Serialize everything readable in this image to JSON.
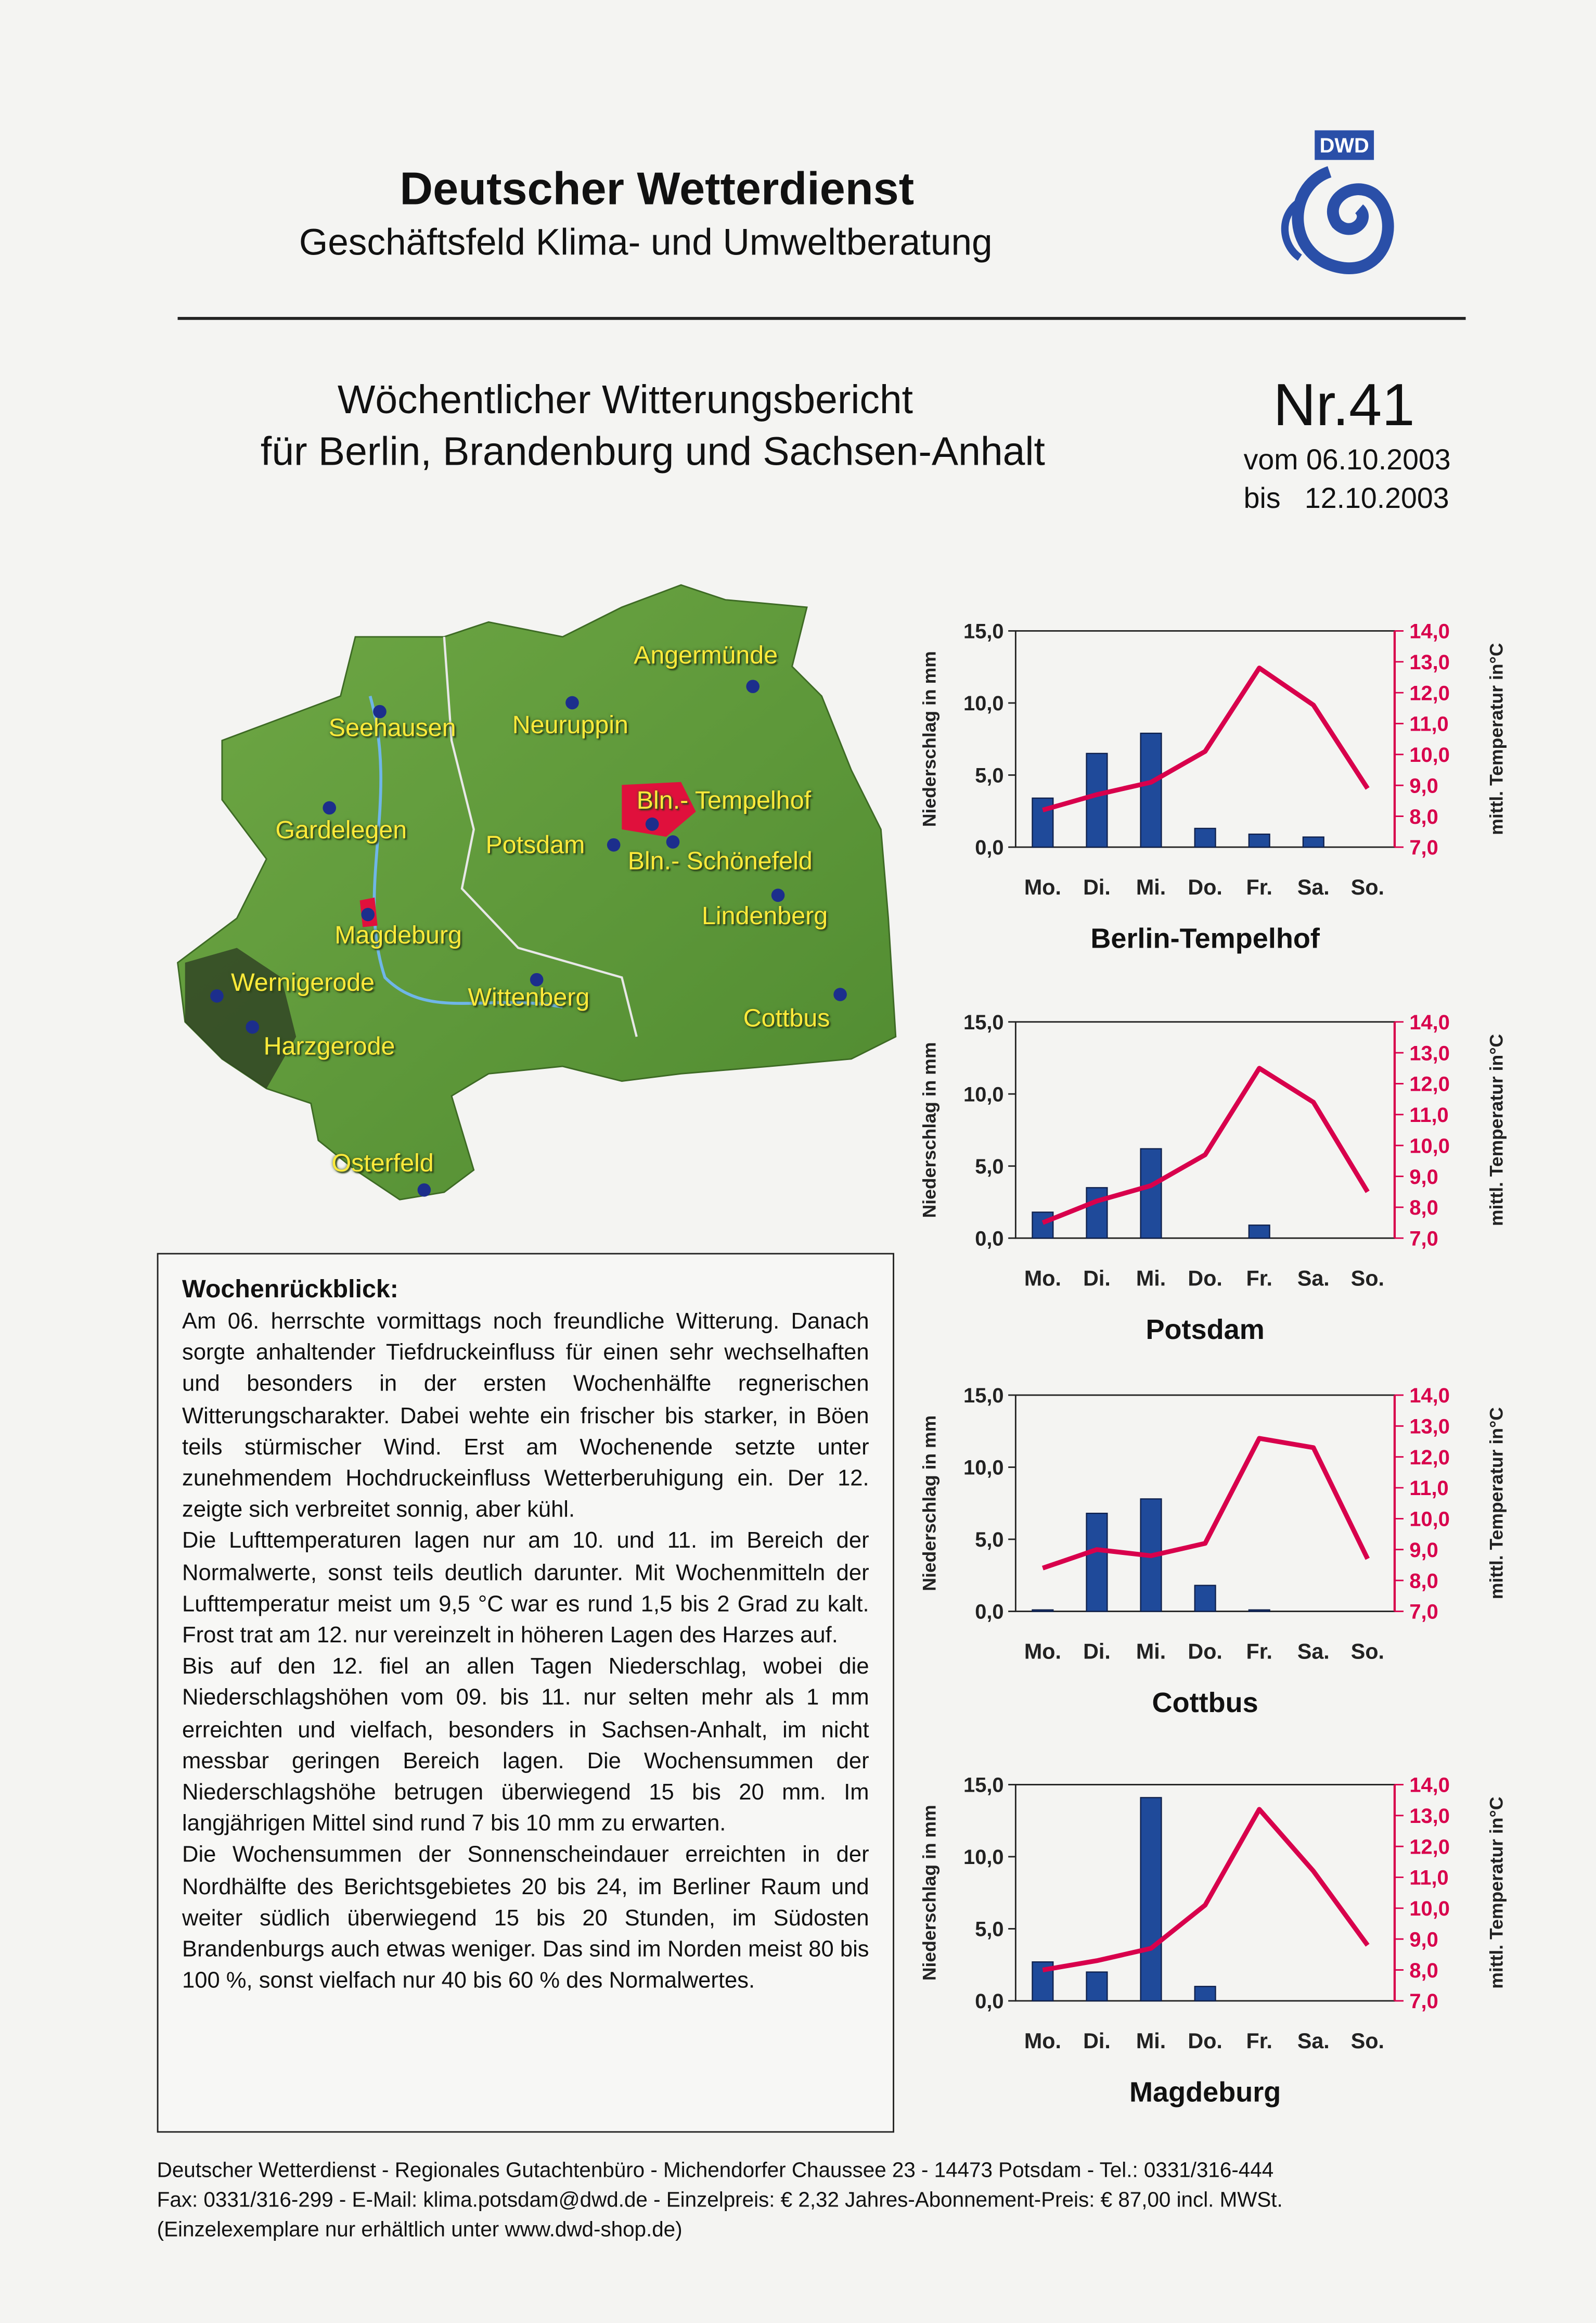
{
  "header": {
    "title": "Deutscher Wetterdienst",
    "subtitle": "Geschäftsfeld Klima- und Umweltberatung",
    "logo": "DWD"
  },
  "report": {
    "title": "Wöchentlicher Witterungsbericht",
    "region": "für Berlin, Brandenburg und Sachsen-Anhalt",
    "number": "Nr.41",
    "from": "vom 06.10.2003",
    "to": "bis   12.10.2003"
  },
  "map": {
    "places": [
      "Angermünde",
      "Seehausen",
      "Neuruppin",
      "Gardelegen",
      "Potsdam",
      "Bln.- Tempelhof",
      "Bln.- Schönefeld",
      "Lindenberg",
      "Magdeburg",
      "Wernigerode",
      "Wittenberg",
      "Cottbus",
      "Harzgerode",
      "Osterfeld"
    ]
  },
  "review": {
    "title": "Wochenrückblick:",
    "paragraphs": [
      "Am 06. herrschte vormittags noch freundliche Witterung. Danach sorgte anhaltender Tiefdruckeinfluss für einen sehr wechselhaften und besonders in der ersten Wochenhälfte regnerischen Witterungscharakter. Dabei wehte ein frischer bis starker, in Böen teils stürmischer Wind. Erst am Wochenende setzte unter zunehmendem Hochdruckeinfluss Wetterberuhigung ein. Der 12. zeigte sich verbreitet sonnig, aber kühl.",
      "Die Lufttemperaturen lagen nur am 10. und 11. im Bereich der Normalwerte, sonst teils deutlich darunter. Mit Wochenmitteln der Lufttemperatur meist um 9,5 °C war es rund 1,5 bis 2 Grad zu kalt. Frost trat am 12. nur vereinzelt in höheren Lagen des Harzes auf.",
      "Bis auf den 12. fiel an allen Tagen Niederschlag, wobei die Niederschlagshöhen vom 09. bis 11. nur selten mehr als 1 mm erreichten und vielfach, besonders in Sachsen-Anhalt, im nicht messbar geringen Bereich lagen. Die Wochensummen der Niederschlagshöhe betrugen überwiegend 15 bis 20 mm. Im langjährigen Mittel sind rund 7 bis 10 mm zu erwarten.",
      "Die Wochensummen der Sonnenscheindauer erreichten in der Nordhälfte des Berichtsgebietes 20 bis 24, im Berliner Raum und weiter südlich überwiegend 15 bis 20 Stunden, im Südosten Brandenburgs auch etwas weniger. Das sind im Norden meist 80 bis 100 %, sonst vielfach nur 40 bis 60 % des Normalwertes."
    ]
  },
  "footer": {
    "lines": [
      "Deutscher Wetterdienst - Regionales Gutachtenbüro - Michendorfer Chaussee 23 - 14473 Potsdam - Tel.: 0331/316-444",
      "Fax: 0331/316-299 - E-Mail: klima.potsdam@dwd.de - Einzelpreis: € 2,32 Jahres-Abonnement-Preis: € 87,00 incl. MWSt.",
      "(Einzelexemplare nur erhältlich unter www.dwd-shop.de)"
    ]
  },
  "chart_data": [
    {
      "type": "bar",
      "title": "Berlin-Tempelhof",
      "ylabel": "Niederschlag in mm",
      "y2label": "mittl. Temperatur in°C",
      "categories": [
        "Mo.",
        "Di.",
        "Mi.",
        "Do.",
        "Fr.",
        "Sa.",
        "So."
      ],
      "series": [
        {
          "name": "Niederschlag",
          "type": "bar",
          "color": "#1f4a9a",
          "values": [
            3.4,
            6.5,
            7.9,
            1.3,
            0.9,
            0.7,
            0
          ]
        },
        {
          "name": "Temperatur",
          "type": "line",
          "axis": "y2",
          "color": "#d8004c",
          "values": [
            8.2,
            8.7,
            9.1,
            10.1,
            12.8,
            11.6,
            8.9
          ]
        }
      ],
      "ylim": [
        0,
        15
      ],
      "yticks": [
        {
          "value": 0,
          "label": "0,0"
        },
        {
          "value": 5,
          "label": "5,0"
        },
        {
          "value": 10,
          "label": "10,0"
        },
        {
          "value": 15,
          "label": "15,0"
        }
      ],
      "y2lim": [
        7,
        14
      ],
      "y2ticks": [
        {
          "value": 7,
          "label": "7,0"
        },
        {
          "value": 8,
          "label": "8,0"
        },
        {
          "value": 9,
          "label": "9,0"
        },
        {
          "value": 10,
          "label": "10,0"
        },
        {
          "value": 11,
          "label": "11,0"
        },
        {
          "value": 12,
          "label": "12,0"
        },
        {
          "value": 13,
          "label": "13,0"
        },
        {
          "value": 14,
          "label": "14,0"
        }
      ]
    },
    {
      "type": "bar",
      "title": "Potsdam",
      "ylabel": "Niederschlag in mm",
      "y2label": "mittl. Temperatur in°C",
      "categories": [
        "Mo.",
        "Di.",
        "Mi.",
        "Do.",
        "Fr.",
        "Sa.",
        "So."
      ],
      "series": [
        {
          "name": "Niederschlag",
          "type": "bar",
          "color": "#1f4a9a",
          "values": [
            1.8,
            3.5,
            6.2,
            0,
            0.9,
            0,
            0
          ]
        },
        {
          "name": "Temperatur",
          "type": "line",
          "axis": "y2",
          "color": "#d8004c",
          "values": [
            7.5,
            8.2,
            8.7,
            9.7,
            12.5,
            11.4,
            8.5
          ]
        }
      ],
      "ylim": [
        0,
        15
      ],
      "yticks": [
        {
          "value": 0,
          "label": "0,0"
        },
        {
          "value": 5,
          "label": "5,0"
        },
        {
          "value": 10,
          "label": "10,0"
        },
        {
          "value": 15,
          "label": "15,0"
        }
      ],
      "y2lim": [
        7,
        14
      ],
      "y2ticks": [
        {
          "value": 7,
          "label": "7,0"
        },
        {
          "value": 8,
          "label": "8,0"
        },
        {
          "value": 9,
          "label": "9,0"
        },
        {
          "value": 10,
          "label": "10,0"
        },
        {
          "value": 11,
          "label": "11,0"
        },
        {
          "value": 12,
          "label": "12,0"
        },
        {
          "value": 13,
          "label": "13,0"
        },
        {
          "value": 14,
          "label": "14,0"
        }
      ]
    },
    {
      "type": "bar",
      "title": "Cottbus",
      "ylabel": "Niederschlag in mm",
      "y2label": "mittl. Temperatur in°C",
      "categories": [
        "Mo.",
        "Di.",
        "Mi.",
        "Do.",
        "Fr.",
        "Sa.",
        "So."
      ],
      "series": [
        {
          "name": "Niederschlag",
          "type": "bar",
          "color": "#1f4a9a",
          "values": [
            0.1,
            6.8,
            7.8,
            1.8,
            0.1,
            0,
            0
          ]
        },
        {
          "name": "Temperatur",
          "type": "line",
          "axis": "y2",
          "color": "#d8004c",
          "values": [
            8.4,
            9.0,
            8.8,
            9.2,
            12.6,
            12.3,
            8.7
          ]
        }
      ],
      "ylim": [
        0,
        15
      ],
      "yticks": [
        {
          "value": 0,
          "label": "0,0"
        },
        {
          "value": 5,
          "label": "5,0"
        },
        {
          "value": 10,
          "label": "10,0"
        },
        {
          "value": 15,
          "label": "15,0"
        }
      ],
      "y2lim": [
        7,
        14
      ],
      "y2ticks": [
        {
          "value": 7,
          "label": "7,0"
        },
        {
          "value": 8,
          "label": "8,0"
        },
        {
          "value": 9,
          "label": "9,0"
        },
        {
          "value": 10,
          "label": "10,0"
        },
        {
          "value": 11,
          "label": "11,0"
        },
        {
          "value": 12,
          "label": "12,0"
        },
        {
          "value": 13,
          "label": "13,0"
        },
        {
          "value": 14,
          "label": "14,0"
        }
      ]
    },
    {
      "type": "bar",
      "title": "Magdeburg",
      "ylabel": "Niederschlag in mm",
      "y2label": "mittl. Temperatur in°C",
      "categories": [
        "Mo.",
        "Di.",
        "Mi.",
        "Do.",
        "Fr.",
        "Sa.",
        "So."
      ],
      "series": [
        {
          "name": "Niederschlag",
          "type": "bar",
          "color": "#1f4a9a",
          "values": [
            2.7,
            2.0,
            14.1,
            1.0,
            0,
            0,
            0
          ]
        },
        {
          "name": "Temperatur",
          "type": "line",
          "axis": "y2",
          "color": "#d8004c",
          "values": [
            8.0,
            8.3,
            8.7,
            10.1,
            13.2,
            11.2,
            8.8
          ]
        }
      ],
      "ylim": [
        0,
        15
      ],
      "yticks": [
        {
          "value": 0,
          "label": "0,0"
        },
        {
          "value": 5,
          "label": "5,0"
        },
        {
          "value": 10,
          "label": "10,0"
        },
        {
          "value": 15,
          "label": "15,0"
        }
      ],
      "y2lim": [
        7,
        14
      ],
      "y2ticks": [
        {
          "value": 7,
          "label": "7,0"
        },
        {
          "value": 8,
          "label": "8,0"
        },
        {
          "value": 9,
          "label": "9,0"
        },
        {
          "value": 10,
          "label": "10,0"
        },
        {
          "value": 11,
          "label": "11,0"
        },
        {
          "value": 12,
          "label": "12,0"
        },
        {
          "value": 13,
          "label": "13,0"
        },
        {
          "value": 14,
          "label": "14,0"
        }
      ]
    }
  ]
}
